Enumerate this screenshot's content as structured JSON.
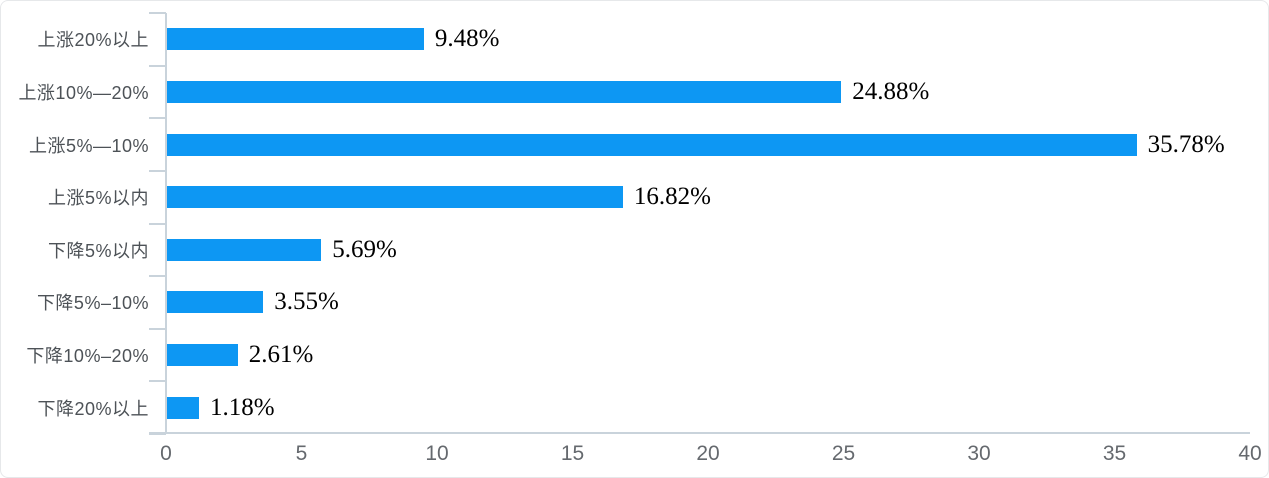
{
  "chart_data": {
    "type": "bar",
    "orientation": "horizontal",
    "title": "",
    "xlabel": "",
    "ylabel": "",
    "categories": [
      "上涨20%以上",
      "上涨10%—20%",
      "上涨5%—10%",
      "上涨5%以内",
      "下降5%以内",
      "下降5%–10%",
      "下降10%–20%",
      "下降20%以上"
    ],
    "values": [
      9.48,
      24.88,
      35.78,
      16.82,
      5.69,
      3.55,
      2.61,
      1.18
    ],
    "data_labels": [
      "9.48%",
      "24.88%",
      "35.78%",
      "16.82%",
      "5.69%",
      "3.55%",
      "2.61%",
      "1.18%"
    ],
    "xlim": [
      0,
      40
    ],
    "x_ticks": [
      "0",
      "5",
      "10",
      "15",
      "20",
      "25",
      "30",
      "35",
      "40"
    ],
    "grid": false,
    "legend": false,
    "colors": {
      "bar": "#0d97f3",
      "axis_line": "#c9d3db",
      "category_label": "#4d5257",
      "tick_label": "#65696e",
      "value_label": "#000000"
    }
  }
}
